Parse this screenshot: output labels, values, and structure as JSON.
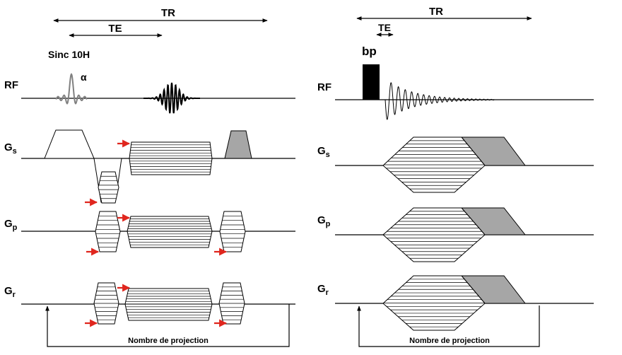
{
  "left_panel": {
    "tr_label": "TR",
    "te_label": "TE",
    "pulse_label": "Sinc 10H",
    "flip_label": "α",
    "rows": {
      "rf": "RF",
      "gs_main": "G",
      "gs_sub": "s",
      "gp_main": "G",
      "gp_sub": "p",
      "gr_main": "G",
      "gr_sub": "r"
    },
    "loop_label": "Nombre de projection"
  },
  "right_panel": {
    "tr_label": "TR",
    "te_label": "TE",
    "pulse_label": "bp",
    "rows": {
      "rf": "RF",
      "gs_main": "G",
      "gs_sub": "s",
      "gp_main": "G",
      "gp_sub": "p",
      "gr_main": "G",
      "gr_sub": "r"
    },
    "loop_label": "Nombre de projection"
  },
  "colors": {
    "line": "#000000",
    "arrow": "#e0261e",
    "spoiler_fill": "#a6a6a6",
    "sinc_pulse": "#808080",
    "hard_pulse": "#000000"
  }
}
